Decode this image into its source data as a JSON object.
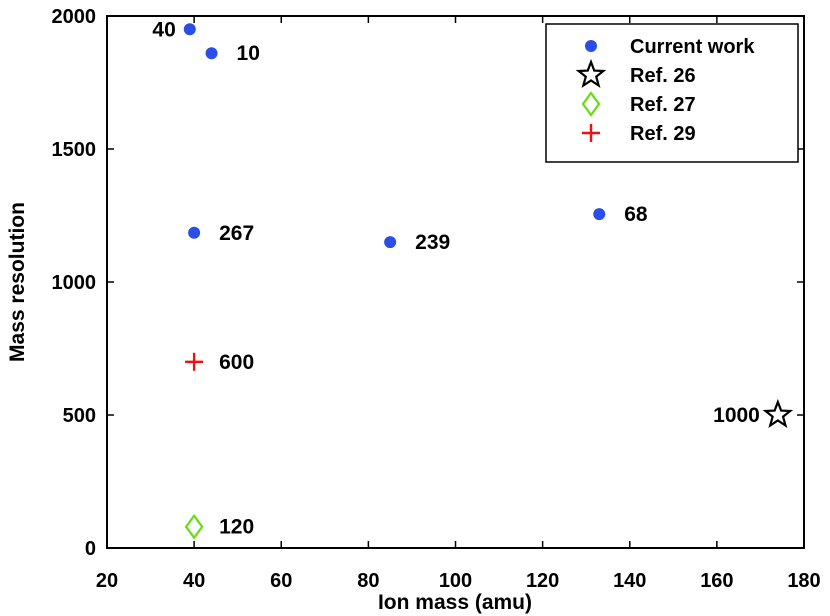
{
  "chart_data": {
    "type": "scatter",
    "title": "",
    "xlabel": "Ion mass (amu)",
    "ylabel": "Mass resolution",
    "xlim": [
      20,
      180
    ],
    "ylim": [
      0,
      2000
    ],
    "xticks": [
      20,
      40,
      60,
      80,
      100,
      120,
      140,
      160,
      180
    ],
    "yticks": [
      0,
      500,
      1000,
      1500,
      2000
    ],
    "grid": false,
    "legend_position": "top-right",
    "series": [
      {
        "name": "Current work",
        "marker": "filled-circle",
        "color": "#2b4de8",
        "points": [
          {
            "x": 39,
            "y": 1950,
            "label": "40",
            "label_side": "left"
          },
          {
            "x": 44,
            "y": 1860,
            "label": "10",
            "label_side": "right"
          },
          {
            "x": 40,
            "y": 1185,
            "label": "267",
            "label_side": "right"
          },
          {
            "x": 85,
            "y": 1150,
            "label": "239",
            "label_side": "right"
          },
          {
            "x": 133,
            "y": 1255,
            "label": "68",
            "label_side": "right"
          }
        ]
      },
      {
        "name": "Ref. 26",
        "marker": "star",
        "color": "#000000",
        "points": [
          {
            "x": 174,
            "y": 500,
            "label": "1000",
            "label_side": "left"
          }
        ]
      },
      {
        "name": "Ref. 27",
        "marker": "diamond",
        "color": "#66dd11",
        "points": [
          {
            "x": 40,
            "y": 80,
            "label": "120",
            "label_side": "right"
          }
        ]
      },
      {
        "name": "Ref. 29",
        "marker": "plus",
        "color": "#ee1111",
        "points": [
          {
            "x": 40,
            "y": 700,
            "label": "600",
            "label_side": "right"
          }
        ]
      }
    ]
  }
}
